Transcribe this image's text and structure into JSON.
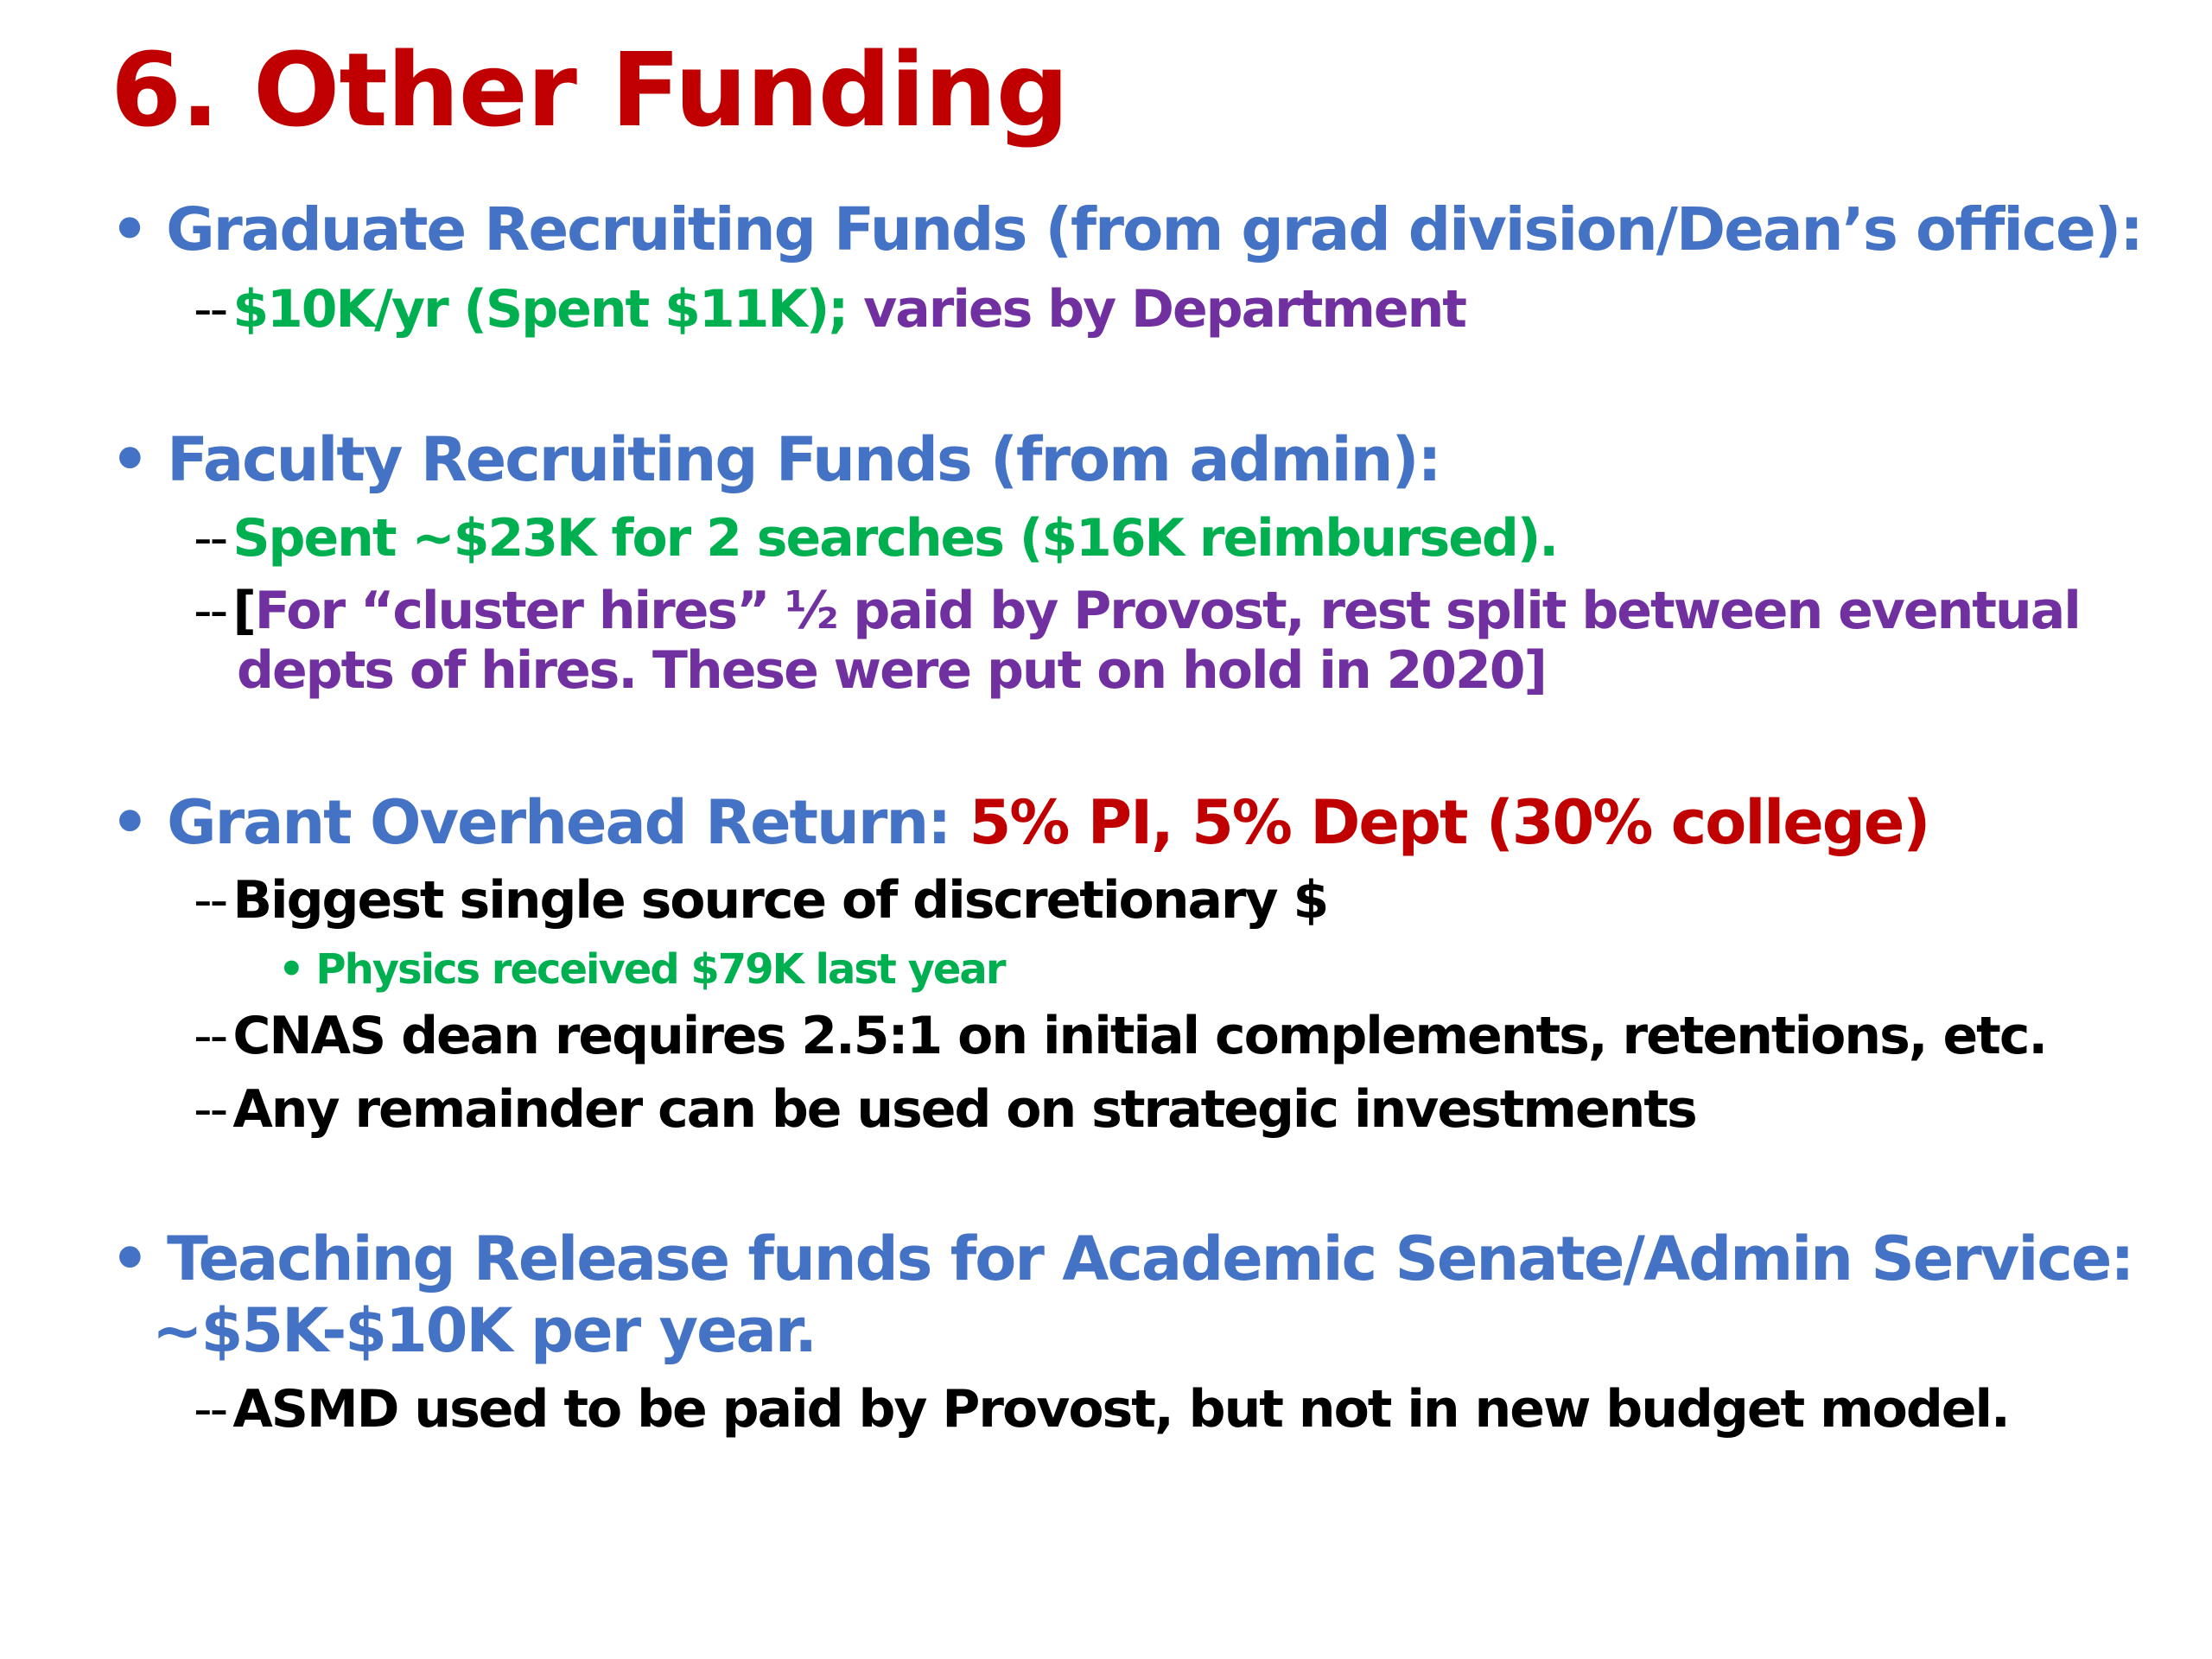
{
  "slide": {
    "title": "6. Other Funding",
    "colors": {
      "title": "#C00000",
      "heading": "#4472C4",
      "green": "#00B050",
      "purple": "#7030A0",
      "red": "#C00000",
      "black": "#000000"
    },
    "bullet_symbol": "•",
    "dash_symbol": "--",
    "sections": [
      {
        "heading": "Graduate Recruiting Funds (from grad division/Dean’s office):",
        "items": [
          {
            "green": "$10K/yr (Spent $11K); ",
            "purple": "varies by Department"
          }
        ]
      },
      {
        "heading": "Faculty Recruiting Funds (from admin):",
        "items": [
          {
            "green": "Spent ~$23K for 2 searches ($16K reimbursed)."
          },
          {
            "bracket": "[",
            "purple_line1": "For “cluster hires” ½ paid by Provost, rest split between eventual",
            "purple_line2": "depts of  hires. These were put on hold in 2020]"
          }
        ]
      },
      {
        "heading": "Grant Overhead Return: ",
        "heading_red": "5% PI, 5% Dept (30% college)",
        "items": [
          {
            "black": "Biggest single source of  discretionary $",
            "sub": "Physics received $79K last year"
          },
          {
            "black": "CNAS dean requires 2.5:1 on initial complements, retentions, etc."
          },
          {
            "black": "Any remainder can be used on strategic investments"
          }
        ]
      },
      {
        "heading_line1": "Teaching Release funds for Academic Senate/Admin Service:",
        "heading_line2": "~$5K-$10K per year.",
        "items": [
          {
            "black": "ASMD used to be paid by Provost, but not in new budget model."
          }
        ]
      }
    ]
  }
}
